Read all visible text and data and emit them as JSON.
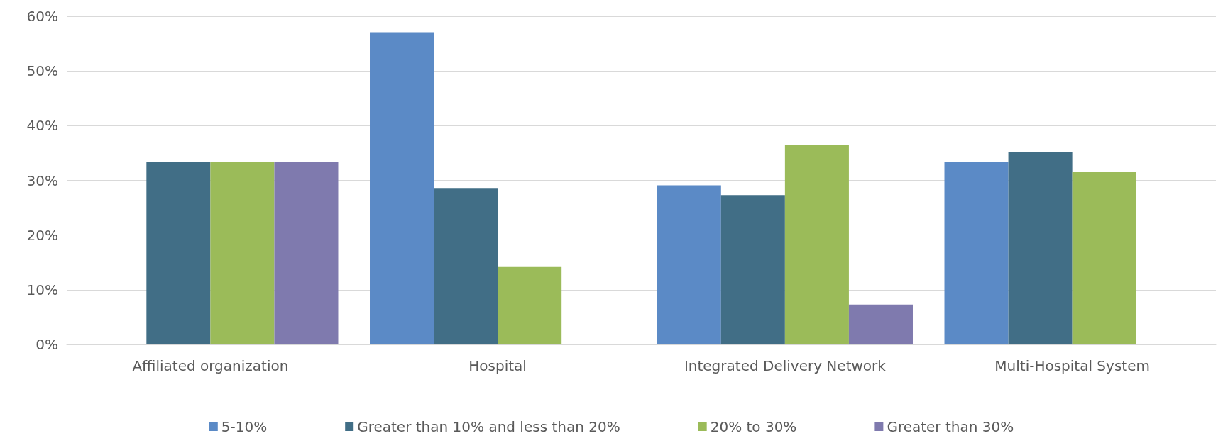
{
  "chart_data": {
    "type": "bar",
    "categories": [
      "Affiliated organization",
      "Hospital",
      "Integrated Delivery Network",
      "Multi-Hospital System"
    ],
    "series": [
      {
        "name": "5-10%",
        "color": "#5b8ac6",
        "values": [
          0,
          57.1,
          29.1,
          33.3
        ]
      },
      {
        "name": "Greater than 10% and less than 20%",
        "color": "#416e86",
        "values": [
          33.3,
          28.6,
          27.3,
          35.2
        ]
      },
      {
        "name": "20% to 30%",
        "color": "#9bbb59",
        "values": [
          33.3,
          14.3,
          36.4,
          31.5
        ]
      },
      {
        "name": "Greater than 30%",
        "color": "#7f7aae",
        "values": [
          33.3,
          0,
          7.3,
          0
        ]
      }
    ],
    "ylim": [
      0,
      60
    ],
    "yticks": [
      {
        "value": 0,
        "label": "0%"
      },
      {
        "value": 10,
        "label": "10%"
      },
      {
        "value": 20,
        "label": "20%"
      },
      {
        "value": 30,
        "label": "30%"
      },
      {
        "value": 40,
        "label": "40%"
      },
      {
        "value": 50,
        "label": "50%"
      },
      {
        "value": 60,
        "label": "60%"
      }
    ],
    "grid": "y",
    "legend": "bottom"
  }
}
